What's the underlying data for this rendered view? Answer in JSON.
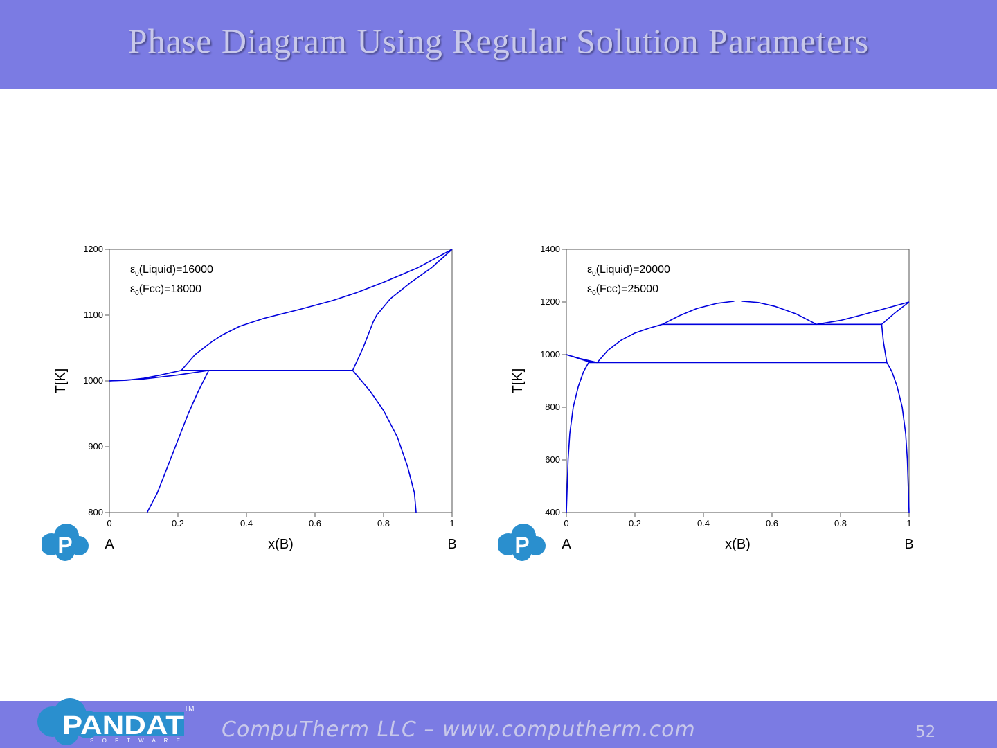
{
  "title": "Phase Diagram Using Regular Solution Parameters",
  "footer": {
    "text": "CompuTherm LLC – www.computherm.com",
    "page_number": "52",
    "logo_word": "PANDAT",
    "logo_sub": "S O F T W A R E",
    "logo_tm": "TM"
  },
  "colors": {
    "banner": "#7b7be3",
    "curve": "#0000dd",
    "logo": "#2a8fce"
  },
  "chart_data": [
    {
      "type": "line",
      "xlabel": "x(B)",
      "ylabel": "T[K]",
      "xlim": [
        0,
        1
      ],
      "ylim": [
        800,
        1200
      ],
      "xticks": [
        "0",
        "0.2",
        "0.4",
        "0.6",
        "0.8",
        "1"
      ],
      "yticks": [
        "800",
        "900",
        "1000",
        "1100",
        "1200"
      ],
      "endpoint_labels": {
        "left": "A",
        "right": "B"
      },
      "annotation": {
        "line1": {
          "prefix": "ε",
          "sub": "0",
          "text": "(Liquid)=16000"
        },
        "line2": {
          "prefix": "ε",
          "sub": "0",
          "text": "(Fcc)=18000"
        }
      },
      "series": [
        {
          "values": [
            [
              0,
              1000
            ],
            [
              0.05,
              1001
            ],
            [
              0.1,
              1004
            ],
            [
              0.15,
              1009
            ],
            [
              0.21,
              1016
            ],
            [
              0.25,
              1040
            ],
            [
              0.3,
              1060
            ],
            [
              0.33,
              1070
            ],
            [
              0.38,
              1083
            ],
            [
              0.45,
              1095
            ],
            [
              0.55,
              1108
            ],
            [
              0.65,
              1122
            ],
            [
              0.72,
              1134
            ],
            [
              0.8,
              1150
            ],
            [
              0.9,
              1172
            ],
            [
              1,
              1200
            ]
          ]
        },
        {
          "values": [
            [
              0,
              1000
            ],
            [
              0.1,
              1003
            ],
            [
              0.2,
              1009
            ],
            [
              0.29,
              1016
            ]
          ]
        },
        {
          "values": [
            [
              0.11,
              800
            ],
            [
              0.14,
              830
            ],
            [
              0.17,
              870
            ],
            [
              0.2,
              910
            ],
            [
              0.23,
              950
            ],
            [
              0.26,
              985
            ],
            [
              0.29,
              1016
            ]
          ]
        },
        {
          "values": [
            [
              0.21,
              1016
            ],
            [
              0.29,
              1016
            ]
          ]
        },
        {
          "values": [
            [
              0.29,
              1016
            ],
            [
              0.71,
              1016
            ]
          ]
        },
        {
          "values": [
            [
              0.71,
              1016
            ],
            [
              0.74,
              1050
            ],
            [
              0.77,
              1090
            ],
            [
              0.78,
              1100
            ],
            [
              0.82,
              1125
            ],
            [
              0.88,
              1150
            ],
            [
              0.94,
              1172
            ],
            [
              1,
              1200
            ]
          ]
        },
        {
          "values": [
            [
              0.71,
              1016
            ],
            [
              0.76,
              985
            ],
            [
              0.8,
              955
            ],
            [
              0.84,
              915
            ],
            [
              0.87,
              870
            ],
            [
              0.89,
              830
            ],
            [
              0.895,
              800
            ]
          ]
        }
      ]
    },
    {
      "type": "line",
      "xlabel": "x(B)",
      "ylabel": "T[K]",
      "xlim": [
        0,
        1
      ],
      "ylim": [
        400,
        1400
      ],
      "xticks": [
        "0",
        "0.2",
        "0.4",
        "0.6",
        "0.8",
        "1"
      ],
      "yticks": [
        "400",
        "600",
        "800",
        "1000",
        "1200",
        "1400"
      ],
      "endpoint_labels": {
        "left": "A",
        "right": "B"
      },
      "annotation": {
        "line1": {
          "prefix": "ε",
          "sub": "0",
          "text": "(Liquid)=20000"
        },
        "line2": {
          "prefix": "ε",
          "sub": "0",
          "text": "(Fcc)=25000"
        }
      },
      "series": [
        {
          "values": [
            [
              0,
              1000
            ],
            [
              0.04,
              985
            ],
            [
              0.09,
              970
            ]
          ]
        },
        {
          "values": [
            [
              0.09,
              970
            ],
            [
              0.12,
              1015
            ],
            [
              0.16,
              1055
            ],
            [
              0.2,
              1082
            ],
            [
              0.24,
              1100
            ],
            [
              0.28,
              1115
            ]
          ]
        },
        {
          "values": [
            [
              0,
              1000
            ],
            [
              0.03,
              988
            ],
            [
              0.06,
              975
            ],
            [
              0.09,
              970
            ]
          ]
        },
        {
          "values": [
            [
              0,
              400
            ],
            [
              0.005,
              600
            ],
            [
              0.01,
              700
            ],
            [
              0.02,
              800
            ],
            [
              0.035,
              880
            ],
            [
              0.05,
              935
            ],
            [
              0.065,
              970
            ]
          ]
        },
        {
          "values": [
            [
              0.065,
              970
            ],
            [
              0.935,
              970
            ]
          ]
        },
        {
          "values": [
            [
              0.28,
              1115
            ],
            [
              0.92,
              1115
            ]
          ]
        },
        {
          "values": [
            [
              0.28,
              1115
            ],
            [
              0.33,
              1148
            ],
            [
              0.38,
              1175
            ],
            [
              0.44,
              1195
            ],
            [
              0.49,
              1203
            ]
          ]
        },
        {
          "values": [
            [
              0.51,
              1203
            ],
            [
              0.56,
              1198
            ],
            [
              0.61,
              1183
            ],
            [
              0.67,
              1155
            ],
            [
              0.73,
              1115
            ]
          ]
        },
        {
          "values": [
            [
              0.73,
              1115
            ],
            [
              0.8,
              1130
            ],
            [
              0.86,
              1150
            ],
            [
              0.93,
              1175
            ],
            [
              1,
              1200
            ]
          ]
        },
        {
          "values": [
            [
              0.92,
              1115
            ],
            [
              0.96,
              1160
            ],
            [
              1,
              1200
            ]
          ]
        },
        {
          "values": [
            [
              0.92,
              1115
            ],
            [
              0.925,
              1050
            ],
            [
              0.935,
              970
            ]
          ]
        },
        {
          "values": [
            [
              0.935,
              970
            ],
            [
              0.95,
              935
            ],
            [
              0.965,
              880
            ],
            [
              0.98,
              800
            ],
            [
              0.99,
              700
            ],
            [
              0.995,
              600
            ],
            [
              1,
              400
            ]
          ]
        }
      ]
    }
  ]
}
